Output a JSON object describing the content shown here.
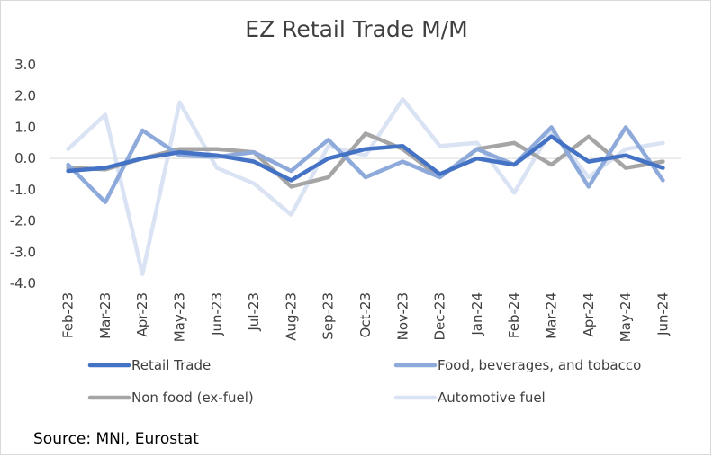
{
  "chart_data": {
    "type": "line",
    "title": "EZ Retail Trade M/M",
    "xlabel": "",
    "ylabel": "",
    "categories": [
      "Feb-23",
      "Mar-23",
      "Apr-23",
      "May-23",
      "Jun-23",
      "Jul-23",
      "Aug-23",
      "Sep-23",
      "Oct-23",
      "Nov-23",
      "Dec-23",
      "Jan-24",
      "Feb-24",
      "Mar-24",
      "Apr-24",
      "May-24",
      "Jun-24"
    ],
    "ylim": [
      -4.0,
      3.0
    ],
    "yticks": [
      "3.0",
      "2.0",
      "1.0",
      "0.0",
      "-1.0",
      "-2.0",
      "-3.0",
      "-4.0"
    ],
    "grid": false,
    "legend_position": "bottom",
    "series": [
      {
        "name": "Retail Trade",
        "color": "#4472c4",
        "values": [
          -0.4,
          -0.3,
          0.0,
          0.2,
          0.1,
          -0.1,
          -0.7,
          0.0,
          0.3,
          0.4,
          -0.5,
          0.0,
          -0.2,
          0.7,
          -0.1,
          0.1,
          -0.3
        ]
      },
      {
        "name": "Food, beverages, and tobacco",
        "color": "#8eaadb",
        "values": [
          -0.2,
          -1.4,
          0.9,
          0.1,
          0.05,
          0.2,
          -0.4,
          0.6,
          -0.6,
          -0.1,
          -0.6,
          0.3,
          -0.2,
          1.0,
          -0.9,
          1.0,
          -0.7
        ]
      },
      {
        "name": "Non food (ex-fuel)",
        "color": "#a5a5a5",
        "values": [
          -0.3,
          -0.35,
          0.0,
          0.3,
          0.3,
          0.2,
          -0.9,
          -0.6,
          0.8,
          0.3,
          -0.6,
          0.3,
          0.5,
          -0.2,
          0.7,
          -0.3,
          -0.1
        ]
      },
      {
        "name": "Automotive fuel",
        "color": "#dae3f3",
        "values": [
          0.3,
          1.4,
          -3.7,
          1.8,
          -0.3,
          -0.8,
          -1.8,
          0.4,
          0.1,
          1.9,
          0.4,
          0.5,
          -1.1,
          0.9,
          -0.6,
          0.3,
          0.5
        ]
      }
    ]
  },
  "source": "Source: MNI, Eurostat"
}
